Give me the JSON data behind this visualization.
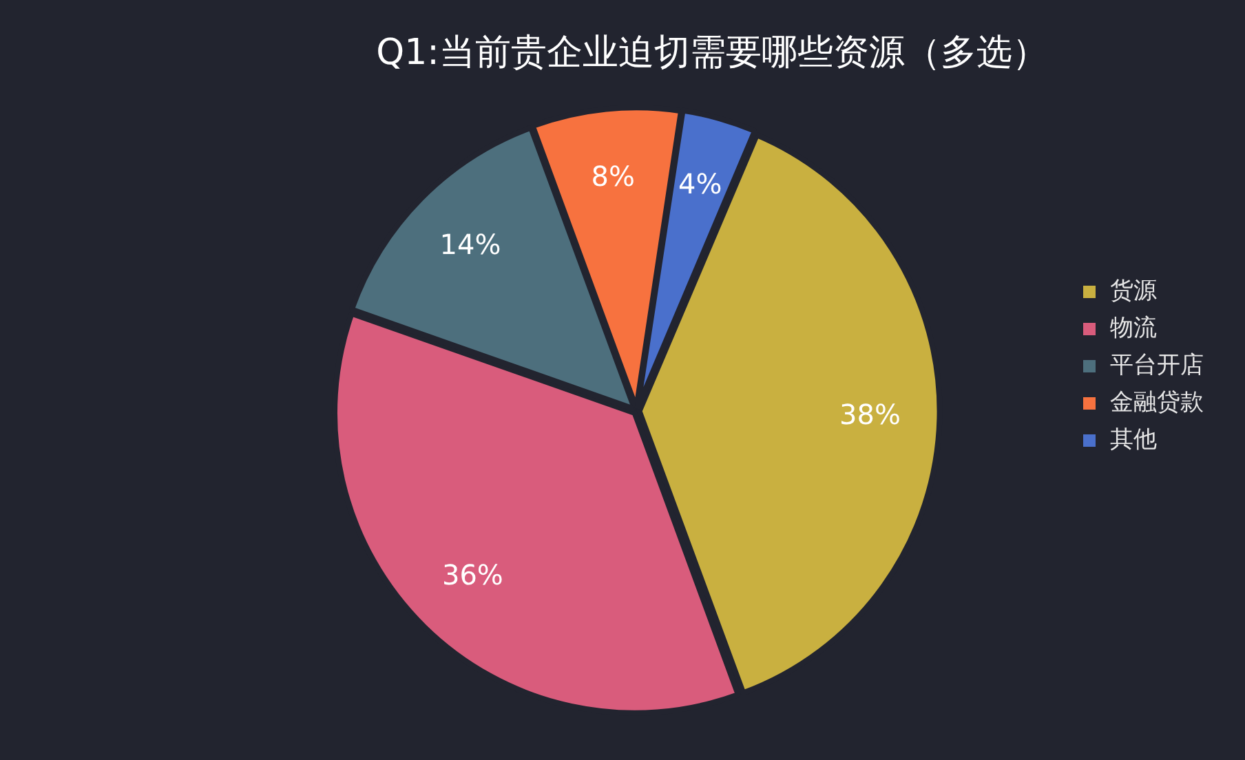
{
  "chart_data": {
    "type": "pie",
    "title": "Q1:当前贵企业迫切需要哪些资源（多选）",
    "categories": [
      "货源",
      "物流",
      "平台开店",
      "金融贷款",
      "其他"
    ],
    "values": [
      38,
      36,
      14,
      8,
      4
    ],
    "value_labels": [
      "38%",
      "36%",
      "14%",
      "8%",
      "4%"
    ],
    "colors": [
      "#c9b040",
      "#d95c7c",
      "#4d6f7d",
      "#f7723f",
      "#4a70cc"
    ],
    "legend": "right"
  }
}
